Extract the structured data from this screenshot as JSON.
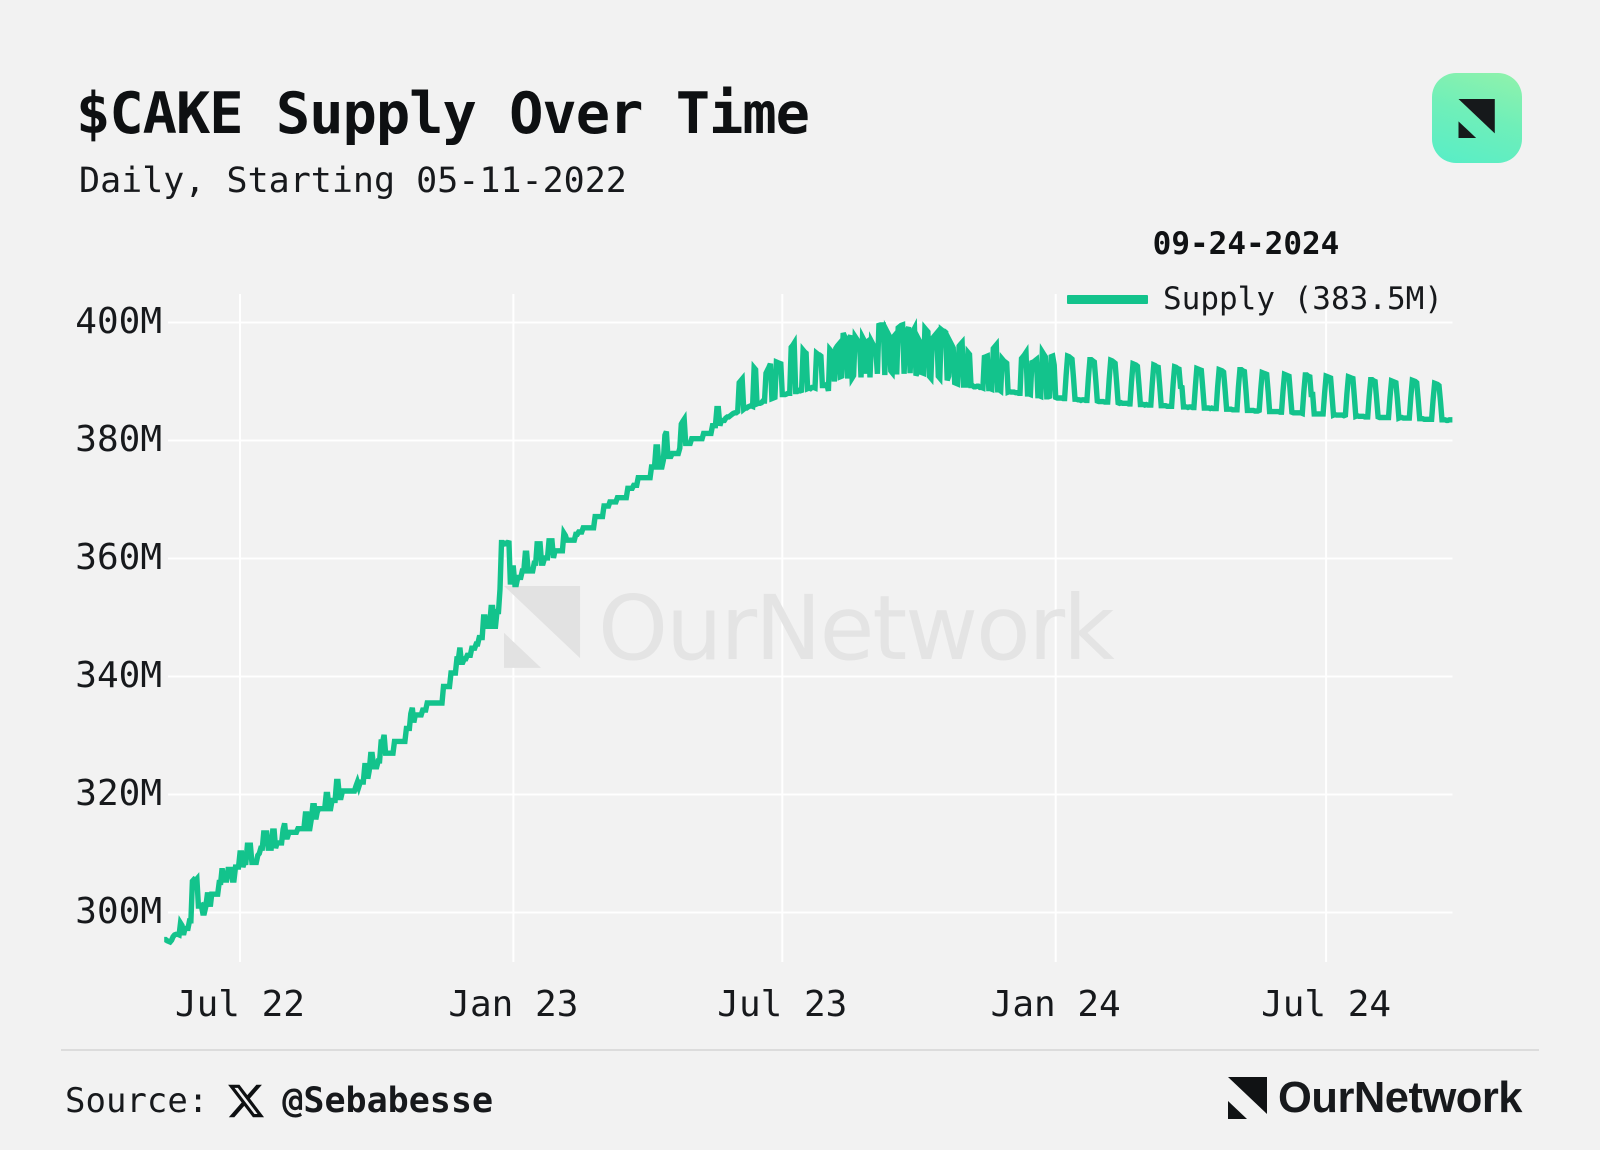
{
  "page": {
    "background": "#f2f2f2",
    "text_color": "#17191c"
  },
  "header": {
    "title": "$CAKE Supply Over Time",
    "subtitle": "Daily, Starting 05-11-2022"
  },
  "brand_icon": {
    "name": "ournetwork-logo",
    "gradient_top": "#90F2AF",
    "gradient_bottom": "#55EDC6",
    "mark_color": "#16191b"
  },
  "legend": {
    "date": "09-24-2024",
    "series_label": "Supply (383.5M)",
    "swatch_color": "#13C38C"
  },
  "watermark": {
    "text": "OurNetwork",
    "color": "#e4e4e4"
  },
  "footer": {
    "source_label": "Source:",
    "x_handle": "@Sebabesse",
    "brand_text": "OurNetwork"
  },
  "chart_data": {
    "type": "line",
    "title": "$CAKE Supply Over Time",
    "subtitle": "Daily, Starting 05-11-2022",
    "x_ticks": [
      "Jul 22",
      "Jan 23",
      "Jul 23",
      "Jan 24",
      "Jul 24"
    ],
    "x_tick_day_index": [
      51,
      235,
      416,
      600,
      782
    ],
    "y_ticks": [
      "300M",
      "320M",
      "340M",
      "360M",
      "380M",
      "400M"
    ],
    "y_tick_values": [
      300,
      320,
      340,
      360,
      380,
      400
    ],
    "ylim": [
      291.5,
      404.5
    ],
    "grid": true,
    "legend_position": "top-right",
    "line_color": "#13C38C",
    "series": [
      {
        "name": "Supply",
        "unit": "M",
        "cadence": "daily",
        "start_date": "2022-05-11",
        "end_date": "2024-09-24",
        "latest_value": 383.5,
        "peak_value": 399.6,
        "values": [
          295.4,
          295.4,
          295.2,
          295.1,
          295.0,
          295.3,
          295.9,
          296.2,
          296.3,
          296.3,
          296.2,
          298.2,
          297.8,
          296.2,
          297.3,
          297.3,
          297.3,
          298.6,
          298.6,
          305.3,
          305.6,
          305.4,
          305.7,
          301.1,
          301.1,
          301.2,
          299.9,
          299.9,
          301.0,
          303.0,
          303.0,
          301.0,
          303.1,
          303.1,
          303.1,
          303.1,
          303.1,
          305.1,
          305.1,
          307.5,
          305.5,
          305.5,
          305.5,
          307.3,
          307.3,
          307.3,
          305.5,
          305.5,
          307.7,
          307.7,
          307.7,
          310.1,
          310.1,
          307.7,
          308.5,
          308.5,
          311.4,
          311.4,
          311.4,
          308.5,
          308.5,
          308.5,
          308.5,
          309.7,
          310.0,
          310.9,
          310.9,
          313.5,
          313.5,
          313.5,
          310.9,
          310.9,
          310.9,
          313.8,
          313.8,
          310.9,
          311.8,
          311.8,
          311.8,
          311.8,
          314.1,
          315.1,
          312.8,
          312.8,
          313.6,
          313.6,
          313.6,
          313.6,
          313.6,
          313.6,
          314.2,
          314.2,
          314.2,
          314.2,
          314.2,
          316.7,
          316.7,
          314.2,
          314.2,
          315.8,
          318.1,
          318.1,
          315.8,
          317.0,
          317.6,
          317.6,
          317.6,
          317.6,
          317.6,
          320.0,
          320.0,
          317.6,
          317.6,
          319.0,
          319.0,
          319.0,
          322.2,
          322.2,
          319.5,
          319.5,
          320.6,
          320.6,
          320.6,
          320.6,
          320.6,
          320.6,
          320.6,
          320.6,
          320.6,
          321.4,
          322.1,
          321.3,
          322.1,
          322.1,
          322.1,
          324.9,
          324.9,
          322.7,
          324.0,
          326.8,
          326.8,
          324.7,
          324.7,
          324.7,
          325.7,
          325.7,
          328.9,
          328.9,
          330.1,
          327.0,
          327.0,
          327.0,
          327.0,
          327.0,
          327.0,
          329.0,
          329.0,
          329.0,
          329.0,
          329.0,
          329.0,
          329.0,
          329.0,
          331.2,
          331.2,
          331.2,
          333.7,
          334.7,
          332.2,
          333.5,
          333.5,
          333.5,
          333.5,
          333.5,
          334.3,
          334.3,
          334.3,
          335.5,
          335.5,
          335.5,
          335.5,
          335.5,
          335.5,
          335.5,
          335.5,
          335.5,
          335.5,
          335.5,
          338.3,
          338.3,
          338.3,
          338.3,
          338.3,
          340.6,
          340.6,
          340.6,
          340.6,
          343.0,
          343.0,
          344.9,
          342.4,
          342.4,
          343.0,
          343.0,
          343.6,
          343.6,
          343.6,
          344.8,
          344.8,
          344.8,
          345.5,
          345.5,
          346.6,
          346.6,
          346.6,
          350.1,
          350.1,
          348.5,
          348.5,
          348.5,
          351.7,
          351.7,
          348.5,
          348.5,
          351.0,
          351.0,
          354.8,
          362.7,
          362.7,
          362.5,
          362.6,
          362.5,
          363.0,
          355.6,
          358.4,
          358.4,
          355.6,
          355.6,
          356.8,
          356.8,
          356.8,
          357.9,
          357.9,
          360.9,
          360.9,
          357.9,
          357.9,
          357.9,
          357.9,
          359.2,
          359.2,
          362.5,
          362.5,
          362.5,
          359.2,
          359.2,
          360.1,
          360.1,
          360.1,
          363.0,
          363.0,
          363.0,
          360.1,
          361.3,
          361.3,
          361.3,
          361.3,
          361.3,
          361.3,
          364.3,
          363.9,
          363.1,
          363.1,
          363.1,
          363.1,
          363.1,
          363.1,
          364.1,
          364.1,
          364.5,
          364.5,
          364.5,
          365.2,
          365.2,
          365.2,
          365.2,
          365.2,
          365.2,
          365.2,
          365.2,
          367.1,
          367.1,
          367.1,
          367.1,
          367.1,
          367.1,
          368.9,
          368.9,
          368.9,
          368.9,
          369.6,
          369.6,
          369.6,
          369.6,
          369.6,
          370.3,
          370.3,
          370.3,
          370.3,
          370.3,
          370.3,
          370.3,
          371.9,
          371.9,
          371.9,
          371.9,
          372.4,
          372.4,
          372.4,
          373.7,
          373.7,
          373.7,
          373.7,
          373.7,
          373.7,
          373.7,
          373.7,
          373.7,
          375.5,
          375.5,
          375.5,
          378.9,
          378.9,
          375.5,
          375.5,
          375.5,
          376.7,
          380.9,
          381.5,
          377.3,
          377.3,
          377.3,
          377.8,
          377.8,
          377.8,
          377.8,
          377.8,
          378.7,
          382.8,
          383.2,
          383.6,
          379.5,
          379.5,
          379.5,
          379.5,
          380.3,
          380.3,
          380.3,
          380.3,
          380.3,
          380.3,
          380.3,
          380.3,
          381.2,
          381.2,
          381.2,
          381.2,
          381.2,
          381.2,
          382.5,
          382.5,
          382.5,
          385.4,
          385.4,
          382.5,
          383.4,
          383.4,
          383.4,
          383.8,
          384.0,
          384.0,
          384.2,
          384.4,
          384.6,
          384.7,
          384.7,
          384.9,
          389.8,
          390.1,
          390.4,
          385.3,
          385.5,
          385.5,
          385.7,
          385.8,
          385.9,
          385.8,
          392.3,
          392.0,
          386.2,
          386.3,
          386.3,
          386.4,
          386.7,
          386.7,
          391.4,
          391.9,
          392.4,
          393.0,
          387.1,
          387.2,
          387.3,
          393.3,
          393.2,
          393.1,
          393.0,
          387.8,
          387.8,
          387.8,
          387.9,
          388.0,
          388.0,
          395.8,
          396.1,
          396.5,
          388.3,
          388.3,
          388.5,
          388.4,
          388.5,
          395.3,
          395.0,
          394.8,
          388.8,
          388.9,
          388.8,
          389.0,
          389.0,
          388.9,
          394.8,
          394.6,
          394.5,
          394.3,
          389.3,
          389.3,
          389.3,
          389.5,
          388.4,
          395.4,
          395.1,
          394.9,
          390.0,
          395.6,
          396.0,
          396.3,
          390.8,
          390.9,
          398.2,
          397.6,
          397.1,
          390.5,
          397.3,
          397.8,
          390.6,
          391.0,
          397.6,
          397.2,
          396.8,
          396.5,
          390.7,
          397.5,
          397.0,
          391.3,
          396.7,
          396.9,
          390.7,
          396.8,
          396.3,
          395.8,
          395.2,
          391.3,
          399.5,
          399.6,
          399.6,
          399.6,
          391.1,
          398.7,
          398.2,
          397.7,
          391.8,
          391.5,
          397.6,
          397.9,
          391.2,
          399.1,
          399.3,
          399.5,
          399.6,
          391.3,
          398.1,
          398.6,
          399.2,
          391.4,
          398.0,
          398.5,
          399.0,
          391.0,
          391.6,
          397.0,
          396.5,
          391.5,
          391.4,
          399.0,
          398.7,
          398.4,
          390.9,
          390.6,
          397.3,
          397.6,
          397.9,
          398.2,
          390.9,
          390.6,
          398.8,
          398.6,
          398.5,
          398.3,
          390.2,
          390.9,
          396.7,
          396.2,
          395.7,
          389.8,
          389.7,
          389.6,
          396.0,
          396.3,
          396.6,
          389.4,
          389.4,
          389.4,
          394.9,
          394.6,
          389.3,
          389.3,
          389.1,
          389.1,
          389.2,
          389.2,
          389.0,
          389.0,
          388.9,
          394.1,
          394.2,
          394.3,
          388.8,
          388.8,
          388.7,
          395.6,
          395.9,
          396.2,
          388.6,
          388.6,
          388.4,
          393.8,
          393.5,
          393.3,
          393.1,
          388.2,
          388.3,
          388.2,
          388.2,
          388.2,
          388.1,
          388.1,
          388.0,
          388.0,
          393.9,
          394.2,
          394.5,
          394.9,
          387.9,
          387.9,
          387.8,
          393.2,
          393.3,
          393.5,
          393.7,
          387.6,
          387.6,
          387.5,
          395.0,
          394.6,
          394.2,
          387.4,
          387.4,
          387.5,
          394.2,
          394.3,
          392.8,
          387.3,
          387.2,
          387.2,
          387.2,
          387.2,
          387.1,
          387.1,
          391.0,
          394.3,
          394.2,
          394.0,
          393.8,
          390.6,
          387.0,
          387.0,
          386.9,
          386.9,
          386.8,
          386.9,
          386.9,
          386.8,
          386.8,
          390.6,
          393.7,
          393.7,
          393.5,
          393.3,
          390.2,
          386.7,
          386.6,
          386.6,
          386.6,
          386.6,
          386.5,
          386.5,
          386.5,
          390.4,
          393.6,
          393.5,
          393.3,
          393.1,
          389.9,
          386.4,
          386.3,
          386.4,
          386.3,
          386.3,
          386.3,
          386.3,
          386.2,
          386.2,
          389.9,
          393.0,
          392.9,
          392.8,
          392.6,
          389.5,
          386.1,
          386.1,
          386.1,
          386.0,
          386.1,
          386.0,
          386.0,
          386.0,
          389.7,
          392.8,
          392.7,
          392.5,
          392.4,
          389.3,
          385.9,
          385.9,
          385.9,
          385.9,
          385.8,
          385.8,
          385.8,
          385.8,
          389.5,
          392.5,
          392.4,
          392.2,
          392.1,
          389.1,
          389.0,
          385.7,
          385.7,
          385.7,
          385.6,
          385.7,
          385.7,
          385.6,
          385.6,
          389.2,
          392.2,
          392.1,
          392.0,
          391.9,
          388.8,
          385.5,
          385.5,
          385.5,
          385.5,
          385.4,
          385.5,
          385.4,
          385.4,
          385.4,
          389.0,
          392.0,
          391.9,
          391.8,
          391.6,
          388.6,
          385.3,
          385.3,
          385.3,
          385.3,
          385.2,
          385.2,
          385.2,
          385.2,
          389.0,
          392.0,
          392.0,
          391.8,
          391.7,
          388.6,
          385.1,
          385.1,
          385.1,
          385.1,
          385.1,
          385.0,
          385.0,
          385.0,
          385.1,
          388.6,
          391.5,
          391.4,
          391.3,
          391.2,
          388.2,
          384.9,
          384.9,
          384.9,
          384.9,
          384.9,
          384.9,
          384.9,
          384.8,
          384.8,
          388.3,
          391.2,
          391.1,
          391.0,
          390.9,
          387.9,
          384.8,
          384.7,
          384.7,
          384.7,
          384.7,
          384.7,
          384.7,
          384.6,
          388.2,
          391.1,
          391.1,
          390.9,
          390.8,
          387.8,
          387.8,
          384.5,
          384.5,
          384.5,
          384.5,
          384.5,
          384.5,
          384.5,
          388.0,
          390.9,
          390.8,
          390.7,
          390.6,
          387.6,
          384.3,
          384.4,
          384.3,
          384.3,
          384.3,
          384.3,
          384.3,
          384.2,
          384.3,
          387.9,
          390.8,
          390.7,
          390.6,
          390.5,
          387.5,
          384.1,
          384.2,
          384.1,
          384.1,
          384.1,
          384.1,
          384.0,
          384.0,
          384.0,
          387.5,
          390.3,
          390.3,
          390.1,
          390.0,
          387.1,
          384.0,
          383.9,
          383.9,
          383.9,
          383.9,
          383.9,
          383.9,
          383.9,
          387.3,
          390.1,
          390.0,
          389.9,
          389.8,
          387.0,
          383.8,
          383.9,
          383.9,
          383.8,
          383.8,
          383.8,
          383.8,
          383.8,
          387.3,
          390.2,
          390.1,
          390.0,
          389.8,
          386.9,
          383.7,
          383.7,
          383.7,
          383.6,
          383.6,
          383.6,
          383.6,
          383.6,
          383.6,
          386.9,
          389.7,
          389.6,
          389.5,
          389.3,
          386.6,
          383.5,
          383.5,
          383.5,
          383.4,
          383.4,
          383.5,
          383.5,
          383.5
        ]
      }
    ]
  }
}
